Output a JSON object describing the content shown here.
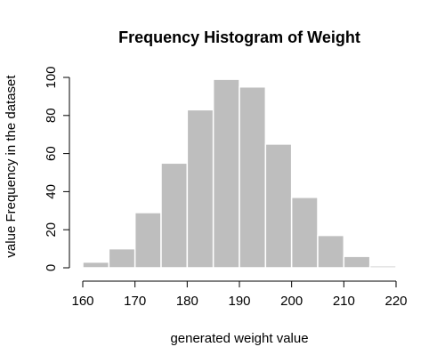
{
  "chart_data": {
    "type": "bar",
    "title": "Frequency Histogram of Weight",
    "xlabel": "generated weight value",
    "ylabel": "value Frequency in the dataset",
    "bins": [
      {
        "start": 160,
        "end": 165,
        "count": 3
      },
      {
        "start": 165,
        "end": 170,
        "count": 10
      },
      {
        "start": 170,
        "end": 175,
        "count": 29
      },
      {
        "start": 175,
        "end": 180,
        "count": 55
      },
      {
        "start": 180,
        "end": 185,
        "count": 83
      },
      {
        "start": 185,
        "end": 190,
        "count": 99
      },
      {
        "start": 190,
        "end": 195,
        "count": 95
      },
      {
        "start": 195,
        "end": 200,
        "count": 65
      },
      {
        "start": 200,
        "end": 205,
        "count": 37
      },
      {
        "start": 205,
        "end": 210,
        "count": 17
      },
      {
        "start": 210,
        "end": 215,
        "count": 6
      },
      {
        "start": 215,
        "end": 220,
        "count": 1
      }
    ],
    "xlim": [
      160,
      220
    ],
    "ylim": [
      0,
      100
    ],
    "x_ticks": [
      "160",
      "170",
      "180",
      "190",
      "200",
      "210",
      "220"
    ],
    "y_ticks": [
      "0",
      "20",
      "40",
      "60",
      "80",
      "100"
    ],
    "bar_color": "#bebebe",
    "bar_border_color": "#ffffff",
    "grid": false,
    "legend": "none"
  }
}
